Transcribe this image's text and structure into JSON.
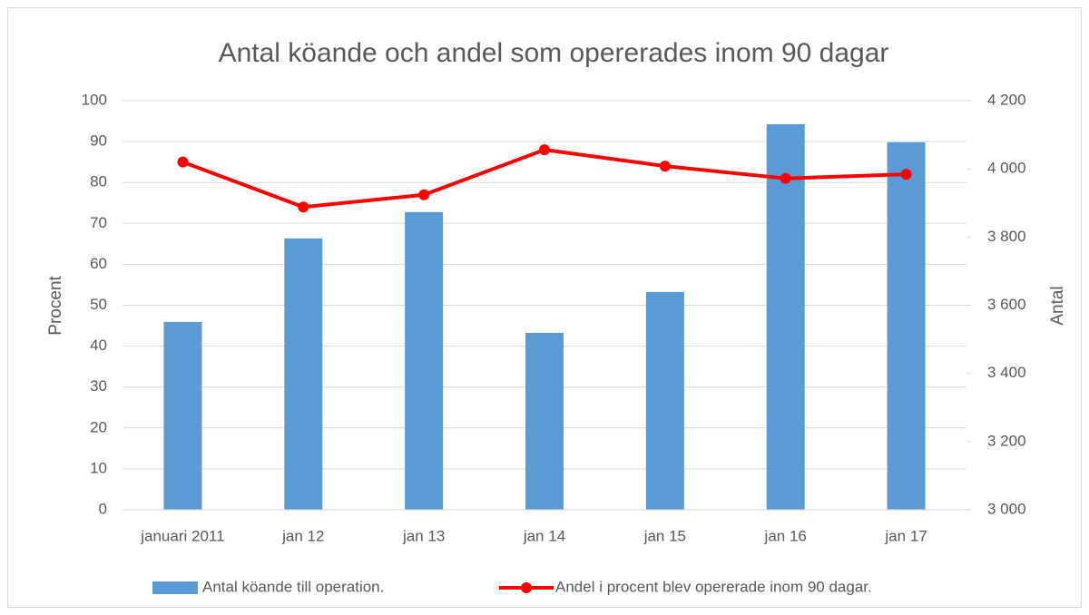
{
  "chart_data": {
    "type": "bar_line",
    "title": "Antal köande och andel som opererades inom 90 dagar",
    "y_label": "Procent",
    "y2_label": "Antal",
    "categories": [
      "januari 2011",
      "jan 12",
      "jan 13",
      "jan 14",
      "jan 15",
      "jan 16",
      "jan 17"
    ],
    "series": [
      {
        "name": "Antal köande till operation.",
        "type": "bar",
        "color": "#5b9bd5",
        "axis": "y2",
        "values": [
          3551,
          3796,
          3873,
          3519,
          3639,
          4131,
          4078
        ]
      },
      {
        "name": "Andel i procent blev opererade inom 90 dagar.",
        "type": "line",
        "color": "#ff0000",
        "axis": "y",
        "values": [
          85,
          74,
          77,
          88,
          84,
          81,
          82
        ]
      }
    ],
    "ylim": [
      0,
      100
    ],
    "yticks": [
      0,
      10,
      20,
      30,
      40,
      50,
      60,
      70,
      80,
      90,
      100
    ],
    "y2lim": [
      3000,
      4200
    ],
    "y2ticks": [
      {
        "value": 3000,
        "label": "3 000"
      },
      {
        "value": 3200,
        "label": "3 200"
      },
      {
        "value": 3400,
        "label": "3 400"
      },
      {
        "value": 3600,
        "label": "3 600"
      },
      {
        "value": 3800,
        "label": "3 800"
      },
      {
        "value": 4000,
        "label": "4 000"
      },
      {
        "value": 4200,
        "label": "4 200"
      }
    ],
    "grid": true,
    "legend": "bottom"
  }
}
